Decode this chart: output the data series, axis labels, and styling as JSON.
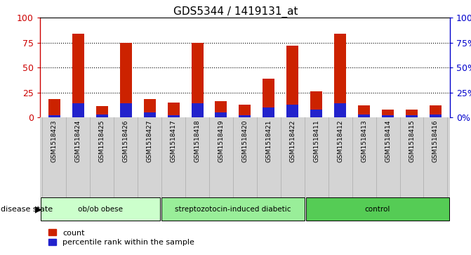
{
  "title": "GDS5344 / 1419131_at",
  "samples": [
    "GSM1518423",
    "GSM1518424",
    "GSM1518425",
    "GSM1518426",
    "GSM1518427",
    "GSM1518417",
    "GSM1518418",
    "GSM1518419",
    "GSM1518420",
    "GSM1518421",
    "GSM1518422",
    "GSM1518411",
    "GSM1518412",
    "GSM1518413",
    "GSM1518414",
    "GSM1518415",
    "GSM1518416"
  ],
  "count_values": [
    18,
    84,
    11,
    75,
    18,
    15,
    75,
    16,
    13,
    39,
    72,
    26,
    84,
    12,
    8,
    8,
    12
  ],
  "percentile_values": [
    2,
    14,
    3,
    14,
    5,
    2,
    14,
    5,
    2,
    10,
    13,
    8,
    14,
    3,
    2,
    2,
    3
  ],
  "groups": [
    {
      "label": "ob/ob obese",
      "start": 0,
      "end": 5,
      "color": "#ccffcc"
    },
    {
      "label": "streptozotocin-induced diabetic",
      "start": 5,
      "end": 11,
      "color": "#99ee99"
    },
    {
      "label": "control",
      "start": 11,
      "end": 17,
      "color": "#55cc55"
    }
  ],
  "bar_color_red": "#cc2200",
  "bar_color_blue": "#2222cc",
  "ylim": [
    0,
    100
  ],
  "yticks": [
    0,
    25,
    50,
    75,
    100
  ],
  "plot_bg_color": "#ffffff",
  "sample_bg_color": "#d4d4d4",
  "left_axis_color": "#cc0000",
  "right_axis_color": "#0000cc",
  "disease_state_label": "disease state",
  "legend_count": "count",
  "legend_percentile": "percentile rank within the sample",
  "bar_width": 0.5
}
